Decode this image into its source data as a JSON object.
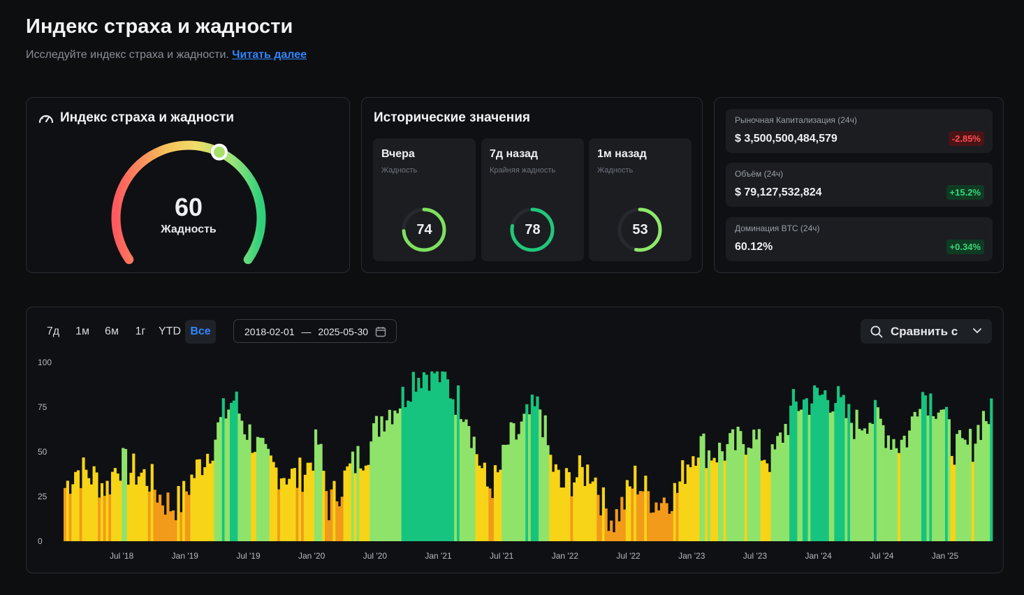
{
  "header": {
    "title": "Индекс страха и жадности",
    "subtitle": "Исследуйте индекс страха и жадности.",
    "read_more": "Читать далее"
  },
  "gauge": {
    "title": "Индекс страха и жадности",
    "value": "60",
    "label": "Жадность",
    "level": 60,
    "colors": {
      "fear": "#ff4d4d",
      "neutral": "#f5d76e",
      "greed": "#2ecc71"
    }
  },
  "historical": {
    "title": "Исторические значения",
    "items": [
      {
        "name": "Вчера",
        "sub": "Жадность",
        "value": "74",
        "level": 74,
        "color": "#7ee05f"
      },
      {
        "name": "7д назад",
        "sub": "Крайняя жадность",
        "value": "78",
        "level": 78,
        "color": "#22c77a"
      },
      {
        "name": "1м назад",
        "sub": "Жадность",
        "value": "53",
        "level": 53,
        "color": "#8ee86a"
      }
    ]
  },
  "stats": [
    {
      "label": "Рыночная Капитализация (24ч)",
      "value": "$ 3,500,500,484,579",
      "change": "-2.85%",
      "direction": "down"
    },
    {
      "label": "Объём (24ч)",
      "value": "$ 79,127,532,824",
      "change": "+15.2%",
      "direction": "up"
    },
    {
      "label": "Доминация BTC (24ч)",
      "value": "60.12%",
      "change": "+0.34%",
      "direction": "up"
    }
  ],
  "toolbar": {
    "ranges": [
      "7д",
      "1м",
      "6м",
      "1г",
      "YTD",
      "Все"
    ],
    "active_range": "Все",
    "date_from": "2018-02-01",
    "date_separator": "—",
    "date_to": "2025-05-30",
    "compare_label": "Сравнить с"
  },
  "chart_data": {
    "type": "bar",
    "ylim": [
      0,
      100
    ],
    "yticks": [
      "0",
      "25",
      "50",
      "75",
      "100"
    ],
    "xticks": [
      "Jul '18",
      "Jan '19",
      "Jul '19",
      "Jan '20",
      "Jul '20",
      "Jan '21",
      "Jul '21",
      "Jan '22",
      "Jul '22",
      "Jan '23",
      "Jul '23",
      "Jan '24",
      "Jul '24",
      "Jan '25"
    ],
    "x_start": "2018-02",
    "x_end": "2025-05",
    "months": [
      "2018-02",
      "2018-03",
      "2018-04",
      "2018-05",
      "2018-06",
      "2018-07",
      "2018-08",
      "2018-09",
      "2018-10",
      "2018-11",
      "2018-12",
      "2019-01",
      "2019-02",
      "2019-03",
      "2019-04",
      "2019-05",
      "2019-06",
      "2019-07",
      "2019-08",
      "2019-09",
      "2019-10",
      "2019-11",
      "2019-12",
      "2020-01",
      "2020-02",
      "2020-03",
      "2020-04",
      "2020-05",
      "2020-06",
      "2020-07",
      "2020-08",
      "2020-09",
      "2020-10",
      "2020-11",
      "2020-12",
      "2021-01",
      "2021-02",
      "2021-03",
      "2021-04",
      "2021-05",
      "2021-06",
      "2021-07",
      "2021-08",
      "2021-09",
      "2021-10",
      "2021-11",
      "2021-12",
      "2022-01",
      "2022-02",
      "2022-03",
      "2022-04",
      "2022-05",
      "2022-06",
      "2022-07",
      "2022-08",
      "2022-09",
      "2022-10",
      "2022-11",
      "2022-12",
      "2023-01",
      "2023-02",
      "2023-03",
      "2023-04",
      "2023-05",
      "2023-06",
      "2023-07",
      "2023-08",
      "2023-09",
      "2023-10",
      "2023-11",
      "2023-12",
      "2024-01",
      "2024-02",
      "2024-03",
      "2024-04",
      "2024-05",
      "2024-06",
      "2024-07",
      "2024-08",
      "2024-09",
      "2024-10",
      "2024-11",
      "2024-12",
      "2025-01",
      "2025-02",
      "2025-03",
      "2025-04",
      "2025-05"
    ],
    "values": [
      30,
      40,
      38,
      35,
      30,
      45,
      40,
      38,
      35,
      25,
      20,
      22,
      35,
      45,
      55,
      70,
      80,
      65,
      55,
      45,
      40,
      38,
      35,
      42,
      55,
      20,
      30,
      40,
      48,
      55,
      70,
      75,
      80,
      92,
      95,
      95,
      90,
      80,
      75,
      50,
      30,
      35,
      55,
      60,
      70,
      75,
      45,
      30,
      35,
      38,
      40,
      20,
      12,
      22,
      35,
      28,
      22,
      25,
      28,
      45,
      55,
      50,
      50,
      52,
      55,
      60,
      50,
      45,
      60,
      75,
      78,
      80,
      82,
      80,
      70,
      65,
      70,
      68,
      60,
      55,
      60,
      85,
      80,
      75,
      55,
      50,
      55,
      70
    ],
    "colors": [
      "#f29a1a",
      "#f7d417",
      "#8fe36a",
      "#17c47f"
    ]
  }
}
